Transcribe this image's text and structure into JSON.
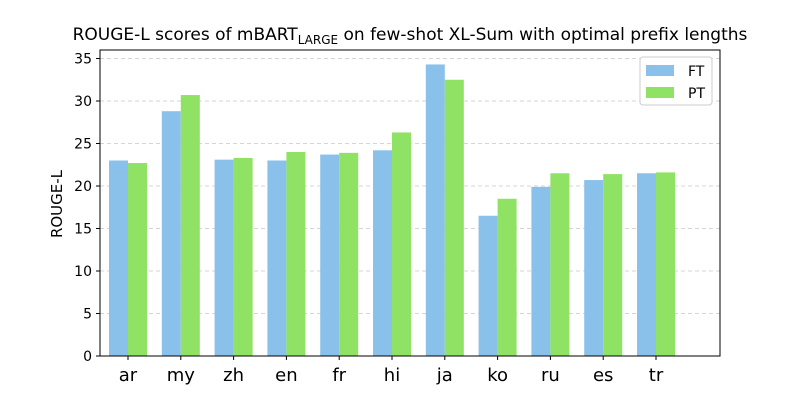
{
  "chart_data": {
    "type": "bar",
    "title_main": "ROUGE-L scores of mBART",
    "title_sub": "LARGE",
    "title_rest": " on few-shot XL-Sum with optimal prefix lengths",
    "ylabel": "ROUGE-L",
    "xlabel": "",
    "categories": [
      "ar",
      "my",
      "zh",
      "en",
      "fr",
      "hi",
      "ja",
      "ko",
      "ru",
      "es",
      "tr"
    ],
    "series": [
      {
        "name": "FT",
        "color": "#8ac1ea",
        "values": [
          23.0,
          28.8,
          23.1,
          23.0,
          23.7,
          24.2,
          34.3,
          16.5,
          19.9,
          20.7,
          21.5
        ]
      },
      {
        "name": "PT",
        "color": "#8fe264",
        "values": [
          22.7,
          30.7,
          23.3,
          24.0,
          23.9,
          26.3,
          32.5,
          18.5,
          21.5,
          21.4,
          21.6
        ]
      }
    ],
    "ylim": [
      0,
      36
    ],
    "yticks": [
      0,
      5,
      10,
      15,
      20,
      25,
      30,
      35
    ],
    "grid": true,
    "legend_position": "top-right"
  }
}
